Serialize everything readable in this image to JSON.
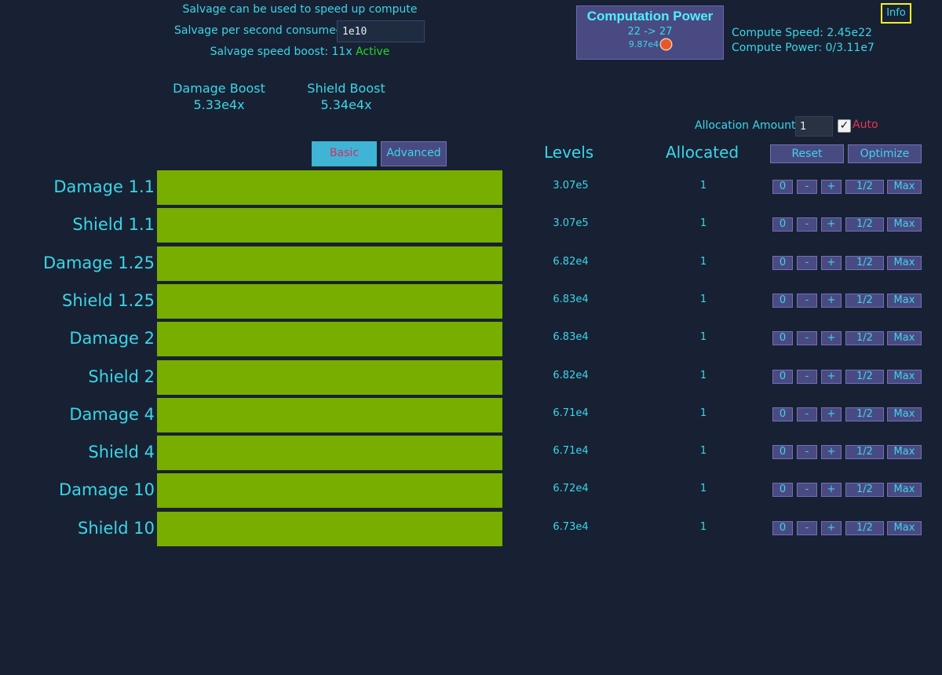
{
  "salvage": {
    "title": "Salvage can be used to speed up compute",
    "rate_label": "Salvage per second consumed:",
    "rate_value": "1e10",
    "boost_label": "Salvage speed boost: 11x",
    "boost_status": "Active"
  },
  "boosts": {
    "damage": {
      "label": "Damage Boost",
      "value": "5.33e4x"
    },
    "shield": {
      "label": "Shield Boost",
      "value": "5.34e4x"
    }
  },
  "computation": {
    "title": "Computation Power",
    "range": "22 -> 27",
    "cost": "9.87e4",
    "cost_icon": "salvage-orb-icon",
    "speed": "Compute Speed: 2.45e22",
    "power": "Compute Power: 0/3.11e7"
  },
  "info_button": "Info",
  "allocation": {
    "label": "Allocation Amount",
    "amount": "1",
    "auto_label": "Auto",
    "auto_checked": true
  },
  "tabs": {
    "basic": "Basic",
    "advanced": "Advanced",
    "active": "basic"
  },
  "columns": {
    "levels": "Levels",
    "allocated": "Allocated"
  },
  "header_buttons": {
    "reset": "Reset",
    "optimize": "Optimize"
  },
  "row_buttons": {
    "zero": "0",
    "minus": "-",
    "plus": "+",
    "half": "1/2",
    "max": "Max"
  },
  "bar_color": "#77ae00",
  "rows": [
    {
      "name": "Damage 1.1",
      "level": "3.07e5",
      "allocated": "1"
    },
    {
      "name": "Shield 1.1",
      "level": "3.07e5",
      "allocated": "1"
    },
    {
      "name": "Damage 1.25",
      "level": "6.82e4",
      "allocated": "1"
    },
    {
      "name": "Shield 1.25",
      "level": "6.83e4",
      "allocated": "1"
    },
    {
      "name": "Damage 2",
      "level": "6.83e4",
      "allocated": "1"
    },
    {
      "name": "Shield 2",
      "level": "6.82e4",
      "allocated": "1"
    },
    {
      "name": "Damage 4",
      "level": "6.71e4",
      "allocated": "1"
    },
    {
      "name": "Shield 4",
      "level": "6.71e4",
      "allocated": "1"
    },
    {
      "name": "Damage 10",
      "level": "6.72e4",
      "allocated": "1"
    },
    {
      "name": "Shield 10",
      "level": "6.73e4",
      "allocated": "1"
    }
  ]
}
